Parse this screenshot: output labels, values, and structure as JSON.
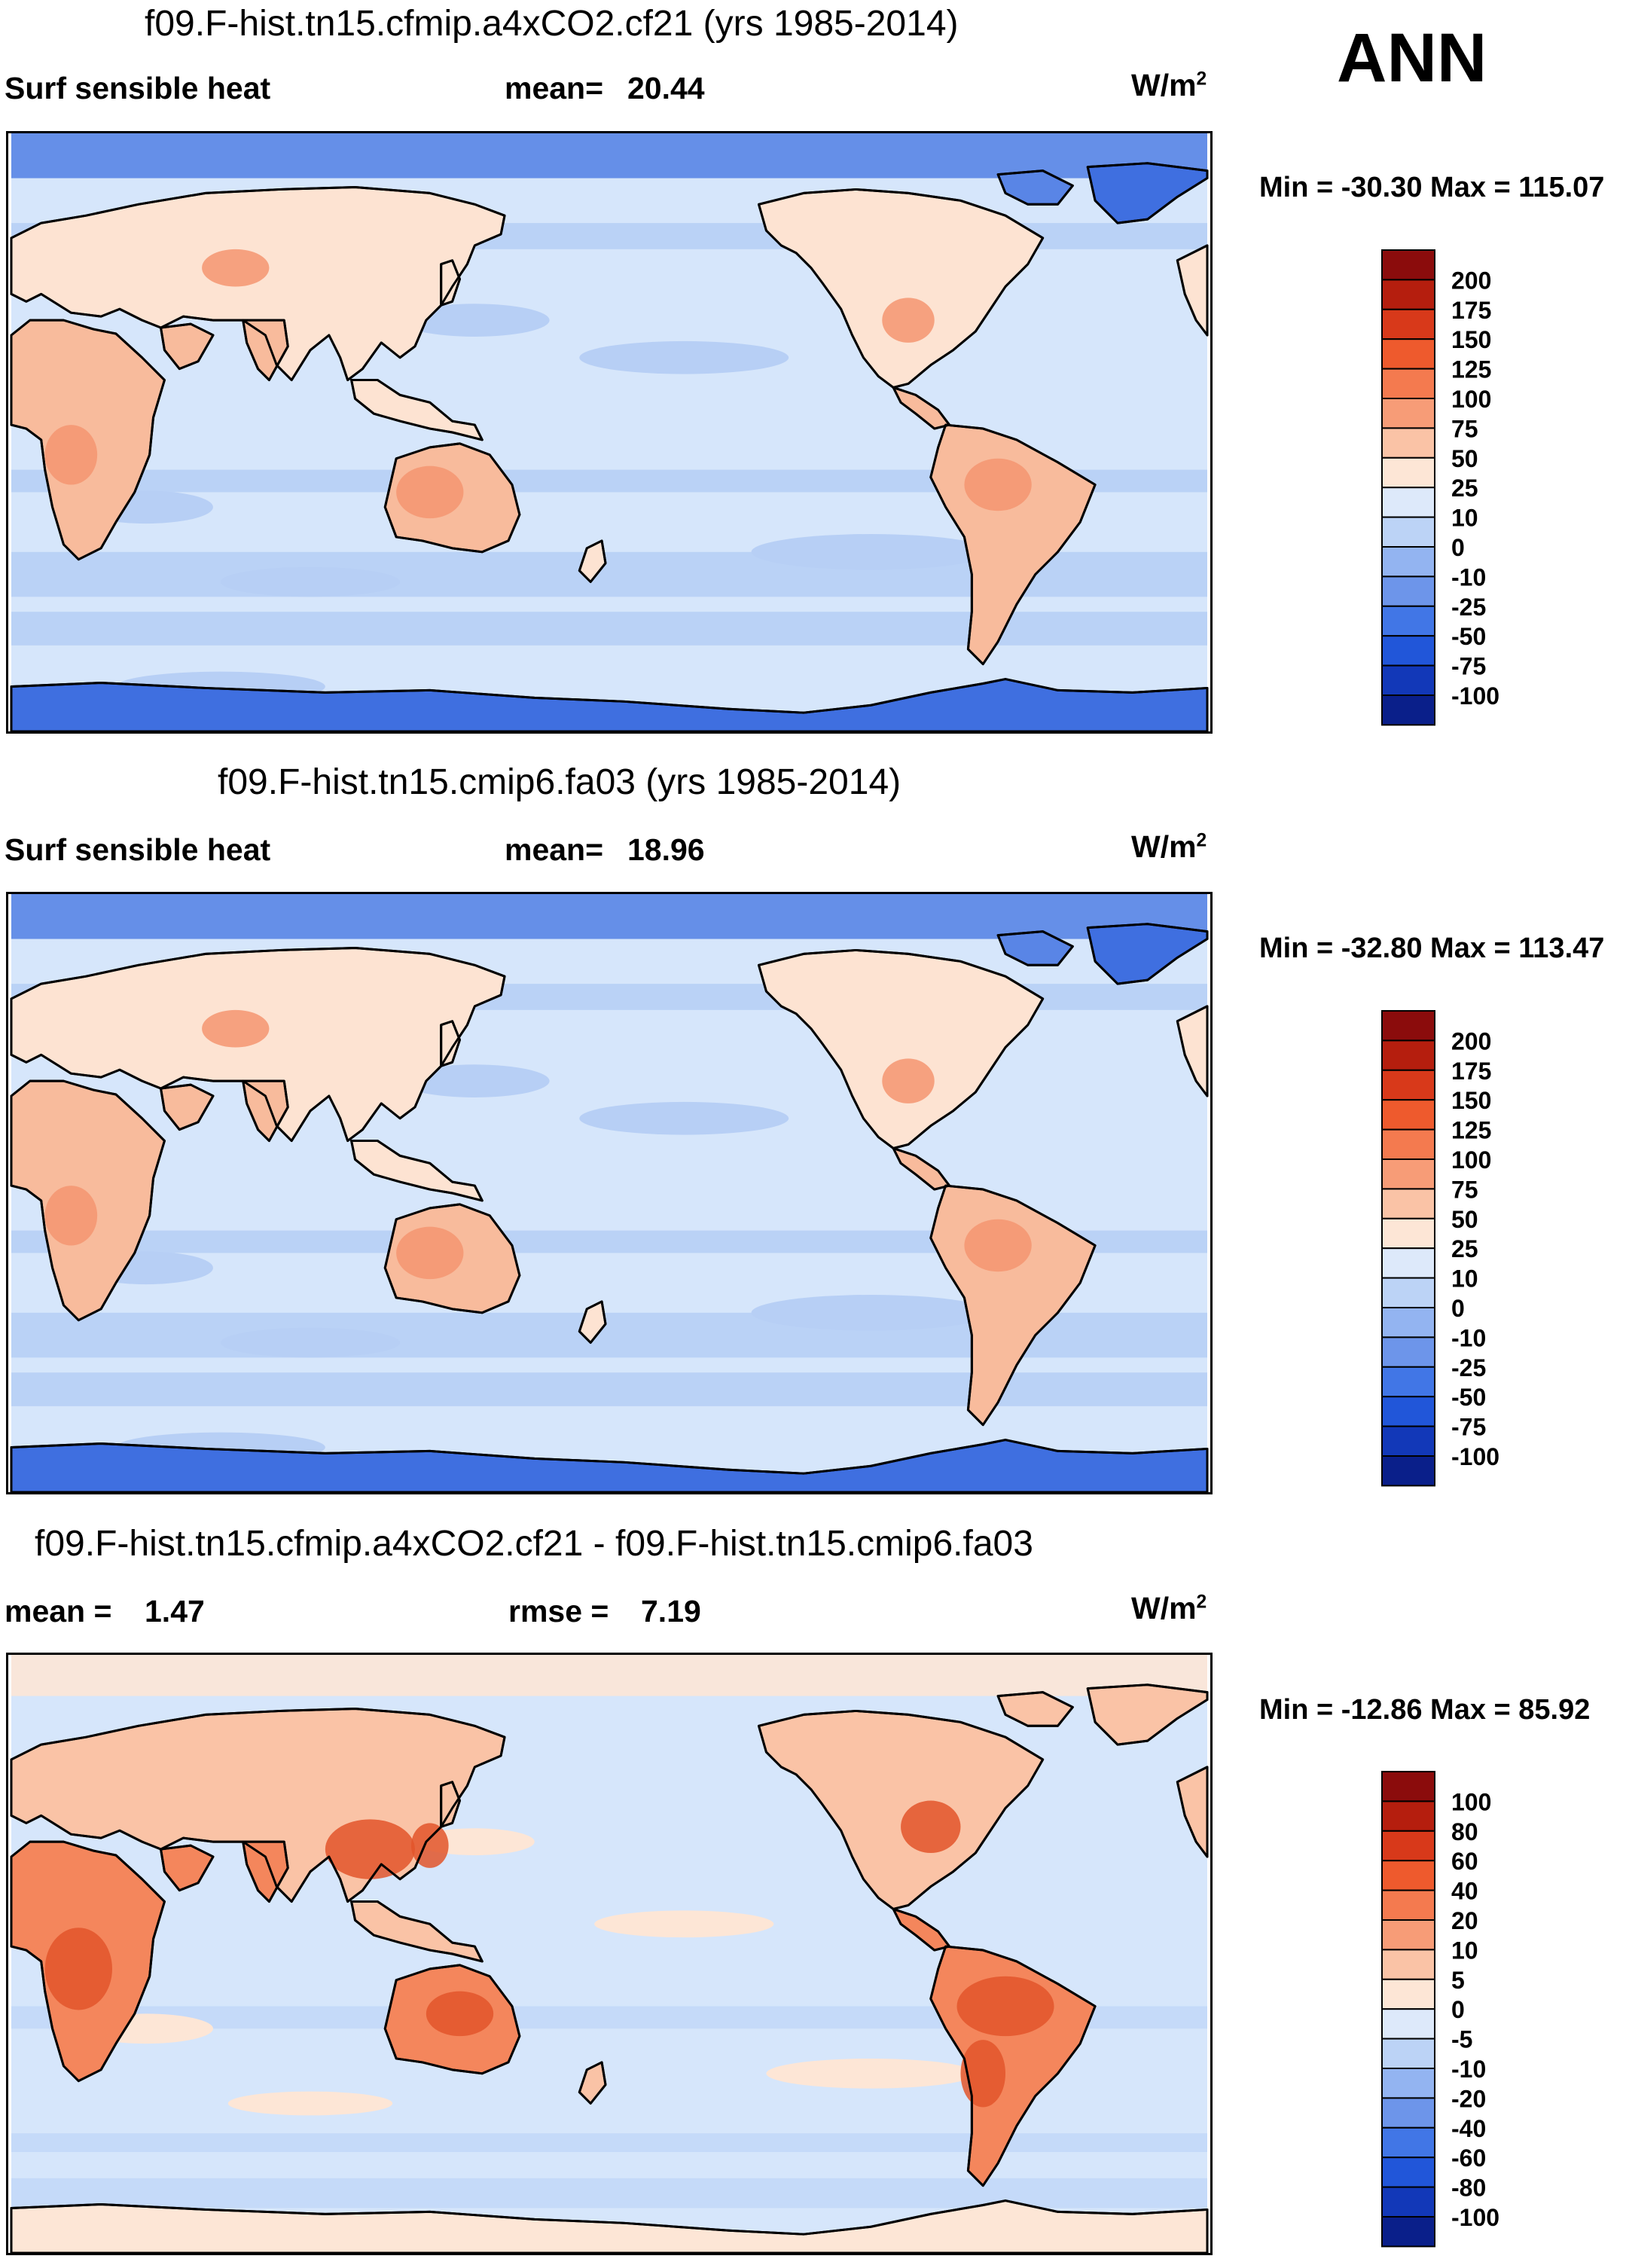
{
  "season": "ANN",
  "units_base": "W/m",
  "units_exp": "2",
  "panels": [
    {
      "title": "f09.F-hist.tn15.cfmip.a4xCO2.cf21 (yrs 1985-2014)",
      "variable": "Surf sensible heat",
      "stat_label": "mean=",
      "stat_value": "20.44",
      "minmax_text": "Min = -30.30 Max = 115.07",
      "colorbar_labels": [
        "200",
        "175",
        "150",
        "125",
        "100",
        "75",
        "50",
        "25",
        "10",
        "0",
        "-10",
        "-25",
        "-50",
        "-75",
        "-100"
      ],
      "colorbar_colors": [
        "#8b0c0c",
        "#b51e0e",
        "#d8391a",
        "#ee5a2d",
        "#f47a4f",
        "#f79c77",
        "#fac3a6",
        "#fde6d6",
        "#dde9fa",
        "#bcd3f6",
        "#93b4f1",
        "#6d95ea",
        "#4176e6",
        "#2156d9",
        "#1238b8",
        "#0a1f8a"
      ],
      "map_palette": {
        "ocean": "#d6e6fb",
        "band": "#b7cff5",
        "cold": "#5985e6",
        "ice": "#3f6fe0",
        "land": "#fde3d2",
        "warm": "#f8bb9c",
        "hot": "#f49571"
      }
    },
    {
      "title": "f09.F-hist.tn15.cmip6.fa03 (yrs 1985-2014)",
      "variable": "Surf sensible heat",
      "stat_label": "mean=",
      "stat_value": "18.96",
      "minmax_text": "Min = -32.80 Max = 113.47",
      "colorbar_labels": [
        "200",
        "175",
        "150",
        "125",
        "100",
        "75",
        "50",
        "25",
        "10",
        "0",
        "-10",
        "-25",
        "-50",
        "-75",
        "-100"
      ],
      "colorbar_colors": [
        "#8b0c0c",
        "#b51e0e",
        "#d8391a",
        "#ee5a2d",
        "#f47a4f",
        "#f79c77",
        "#fac3a6",
        "#fde6d6",
        "#dde9fa",
        "#bcd3f6",
        "#93b4f1",
        "#6d95ea",
        "#4176e6",
        "#2156d9",
        "#1238b8",
        "#0a1f8a"
      ],
      "map_palette": {
        "ocean": "#d6e6fb",
        "band": "#b7cff5",
        "cold": "#5985e6",
        "ice": "#3f6fe0",
        "land": "#fde3d2",
        "warm": "#f8bb9c",
        "hot": "#f49571"
      }
    },
    {
      "title": "f09.F-hist.tn15.cfmip.a4xCO2.cf21 - f09.F-hist.tn15.cmip6.fa03",
      "variable": "mean =",
      "stat_label": "rmse =",
      "variable_value": "1.47",
      "stat_value": "7.19",
      "minmax_text": "Min = -12.86 Max =  85.92",
      "colorbar_labels": [
        "100",
        "80",
        "60",
        "40",
        "20",
        "10",
        "5",
        "0",
        "-5",
        "-10",
        "-20",
        "-40",
        "-60",
        "-80",
        "-100"
      ],
      "colorbar_colors": [
        "#8b0c0c",
        "#b51e0e",
        "#d8391a",
        "#ee5a2d",
        "#f47a4f",
        "#f79c77",
        "#fac3a6",
        "#fde6d6",
        "#dde9fa",
        "#bcd3f6",
        "#93b4f1",
        "#6d95ea",
        "#4176e6",
        "#2156d9",
        "#1238b8",
        "#0a1f8a"
      ],
      "map_palette": {
        "ocean": "#d6e6fb",
        "band": "#c3d8f8",
        "cold": "#b7cff5",
        "ice": "#fde6d6",
        "land": "#fac3a6",
        "warm": "#f4865c",
        "hot": "#e2552a"
      }
    }
  ]
}
